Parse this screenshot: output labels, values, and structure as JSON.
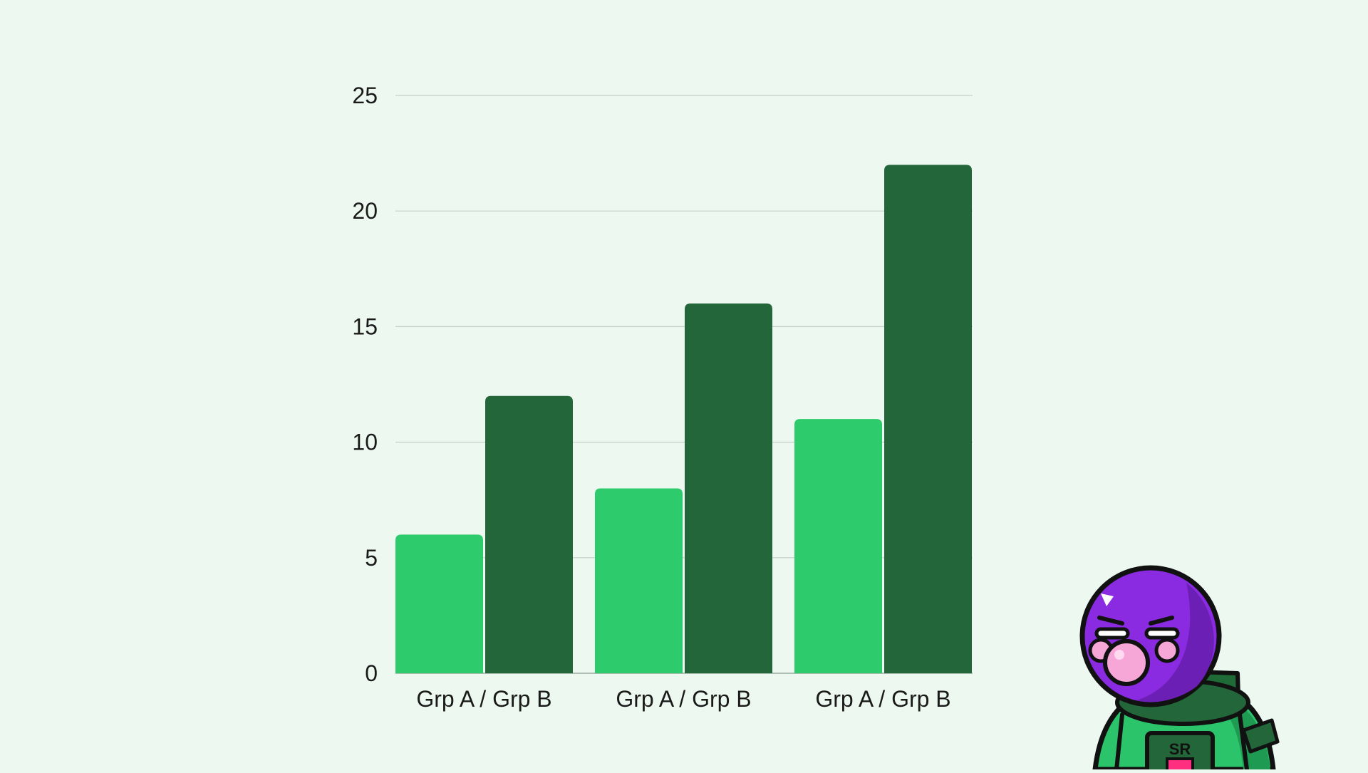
{
  "chart_data": {
    "type": "bar",
    "categories": [
      "Grp A / Grp B",
      "Grp A / Grp B",
      "Grp A / Grp B"
    ],
    "series": [
      {
        "values": [
          6,
          8,
          11
        ],
        "color": "#2ecb6c"
      },
      {
        "values": [
          12,
          16,
          22
        ],
        "color": "#22663a"
      }
    ],
    "ylim": [
      0,
      25
    ],
    "yticks": [
      0,
      5,
      10,
      15,
      20,
      25
    ],
    "grid": true,
    "legend": "none"
  },
  "mascot": {
    "badge_text": "SR",
    "name": "astronaut-mascot"
  }
}
